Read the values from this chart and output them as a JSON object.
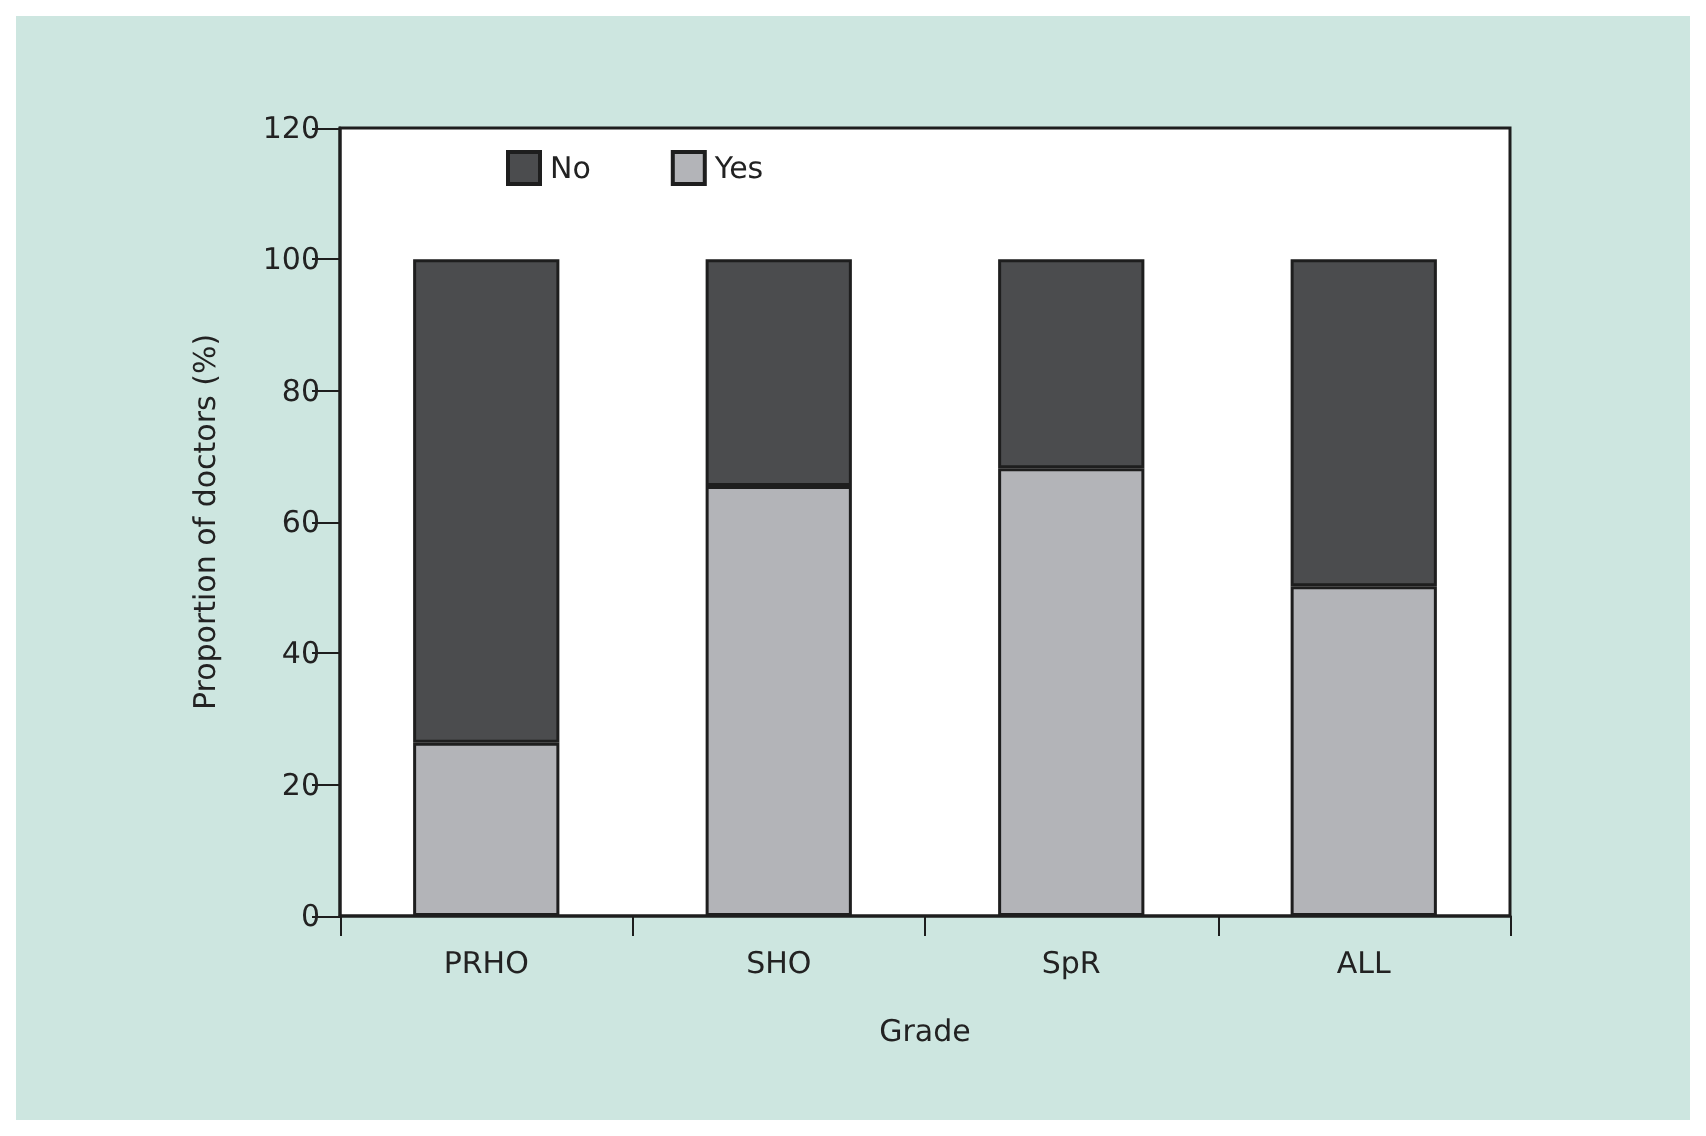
{
  "chart_data": {
    "type": "bar",
    "stacked": true,
    "xlabel": "Grade",
    "ylabel": "Proportion of doctors (%)",
    "categories": [
      "PRHO",
      "SHO",
      "SpR",
      "ALL"
    ],
    "series": [
      {
        "name": "Yes",
        "color": "#b3b4b8",
        "values": [
          26.4,
          65.5,
          68.2,
          50.2
        ]
      },
      {
        "name": "No",
        "color": "#4b4c4e",
        "values": [
          73.6,
          34.5,
          31.8,
          49.8
        ]
      }
    ],
    "ylim": [
      0,
      120
    ],
    "yticks": [
      0,
      20,
      40,
      60,
      80,
      100,
      120
    ],
    "grid": false,
    "legend": "top left"
  }
}
